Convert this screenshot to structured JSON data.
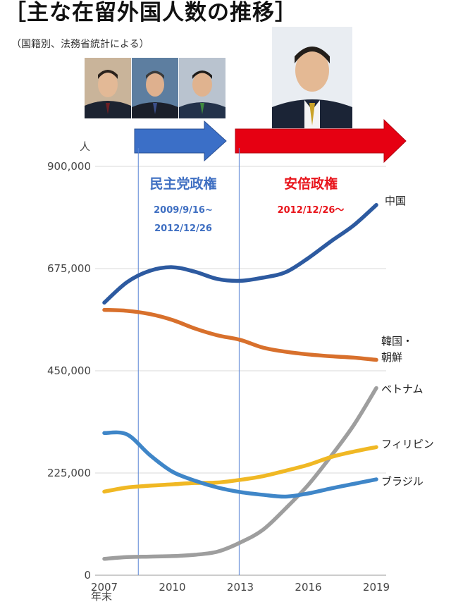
{
  "header": {
    "title": "［主な在留外国人数の推移］",
    "subtitle": "（国籍別、法務省統計による）"
  },
  "annotations": {
    "dpj": {
      "label": "民主党政権",
      "period_start": "2009/9/16~",
      "period_end": "2012/12/26",
      "color": "#3f6fc2"
    },
    "abe": {
      "label": "安倍政権",
      "period": "2012/12/26～",
      "color": "#e8141b"
    },
    "dpj_start_x": 2008.5,
    "dpj_end_x": 2012.95
  },
  "colors": {
    "china": "#2d5aa0",
    "korea": "#d8702c",
    "vietnam": "#9e9e9e",
    "philippines": "#f0b824",
    "brazil": "#3f86c8",
    "grid": "#d9d9d9",
    "arrow_blue": "#3b6fc7",
    "arrow_red": "#e60012"
  },
  "chart_data": {
    "type": "line",
    "title": "主な在留外国人数の推移",
    "yunit": "人",
    "xlabel": "年末",
    "x": [
      2007,
      2008,
      2009,
      2010,
      2011,
      2012,
      2013,
      2014,
      2015,
      2016,
      2017,
      2018,
      2019
    ],
    "xticks": [
      "2007",
      "2010",
      "2013",
      "2016",
      "2019"
    ],
    "yticks": [
      "0",
      "225,000",
      "450,000",
      "675,000",
      "900,000"
    ],
    "ylim": [
      0,
      900000
    ],
    "xlim": [
      2007,
      2019
    ],
    "grid": true,
    "series": [
      {
        "name": "中国",
        "key": "china",
        "values": [
          600000,
          645000,
          670000,
          678000,
          668000,
          652000,
          648000,
          655000,
          667000,
          698000,
          735000,
          770000,
          815000
        ]
      },
      {
        "name": "韓国・朝鮮",
        "key": "korea",
        "values": [
          584000,
          582000,
          575000,
          562000,
          543000,
          528000,
          518000,
          501000,
          492000,
          486000,
          482000,
          479000,
          474000
        ]
      },
      {
        "name": "ベトナム",
        "key": "vietnam",
        "values": [
          36000,
          40000,
          41000,
          42000,
          45000,
          52000,
          72000,
          100000,
          147000,
          199000,
          262000,
          330000,
          412000
        ]
      },
      {
        "name": "フィリピン",
        "key": "philippines",
        "values": [
          184000,
          193000,
          197000,
          200000,
          203000,
          204000,
          210000,
          218000,
          230000,
          243000,
          260000,
          272000,
          282000
        ]
      },
      {
        "name": "ブラジル",
        "key": "brazil",
        "values": [
          313000,
          310000,
          265000,
          228000,
          208000,
          193000,
          183000,
          177000,
          173000,
          180000,
          191000,
          201000,
          211000
        ]
      }
    ]
  }
}
